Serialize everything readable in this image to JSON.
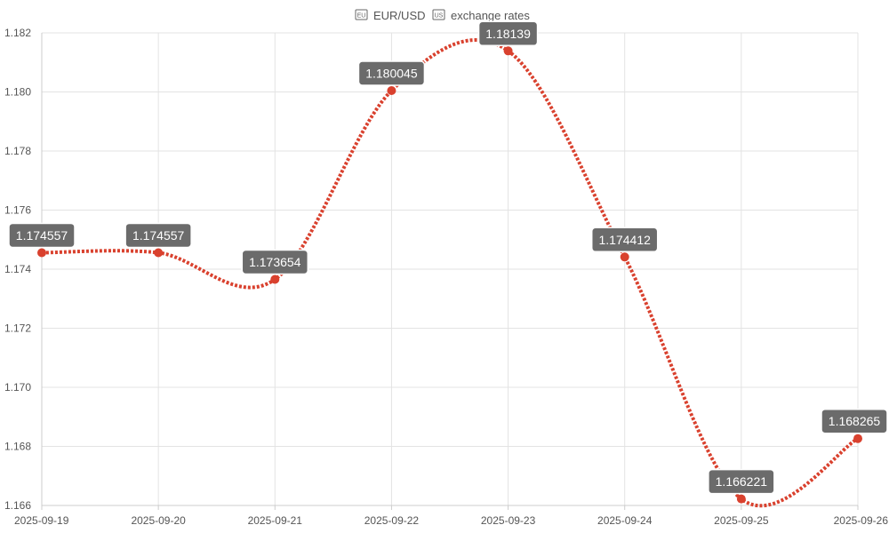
{
  "colors": {
    "series": "#d9412e",
    "label_bg": "#6b6b6b",
    "label_border": "#ffffff",
    "label_text": "#ffffff",
    "grid": "#e3e3e3",
    "text": "#555555"
  },
  "icons": {
    "left": "eu-flag-icon",
    "right": "us-flag-icon"
  },
  "chart_data": {
    "type": "line",
    "title": "EUR/USD",
    "title_suffix": "exchange rates",
    "x": [
      "2025-09-19",
      "2025-09-20",
      "2025-09-21",
      "2025-09-22",
      "2025-09-23",
      "2025-09-24",
      "2025-09-25",
      "2025-09-26"
    ],
    "series": [
      {
        "values": [
          1.174557,
          1.174557,
          1.173654,
          1.180045,
          1.18139,
          1.174412,
          1.166221,
          1.168265
        ],
        "value_labels": [
          "1.174557",
          "1.174557",
          "1.173654",
          "1.180045",
          "1.18139",
          "1.174412",
          "1.166221",
          "1.168265"
        ]
      }
    ],
    "ylim": [
      1.166,
      1.182
    ],
    "yticks": [
      "1.166",
      "1.168",
      "1.170",
      "1.172",
      "1.174",
      "1.176",
      "1.178",
      "1.180",
      "1.182"
    ],
    "grid": true,
    "smooth": true,
    "line_style": "dotted",
    "xlabel": "",
    "ylabel": ""
  }
}
